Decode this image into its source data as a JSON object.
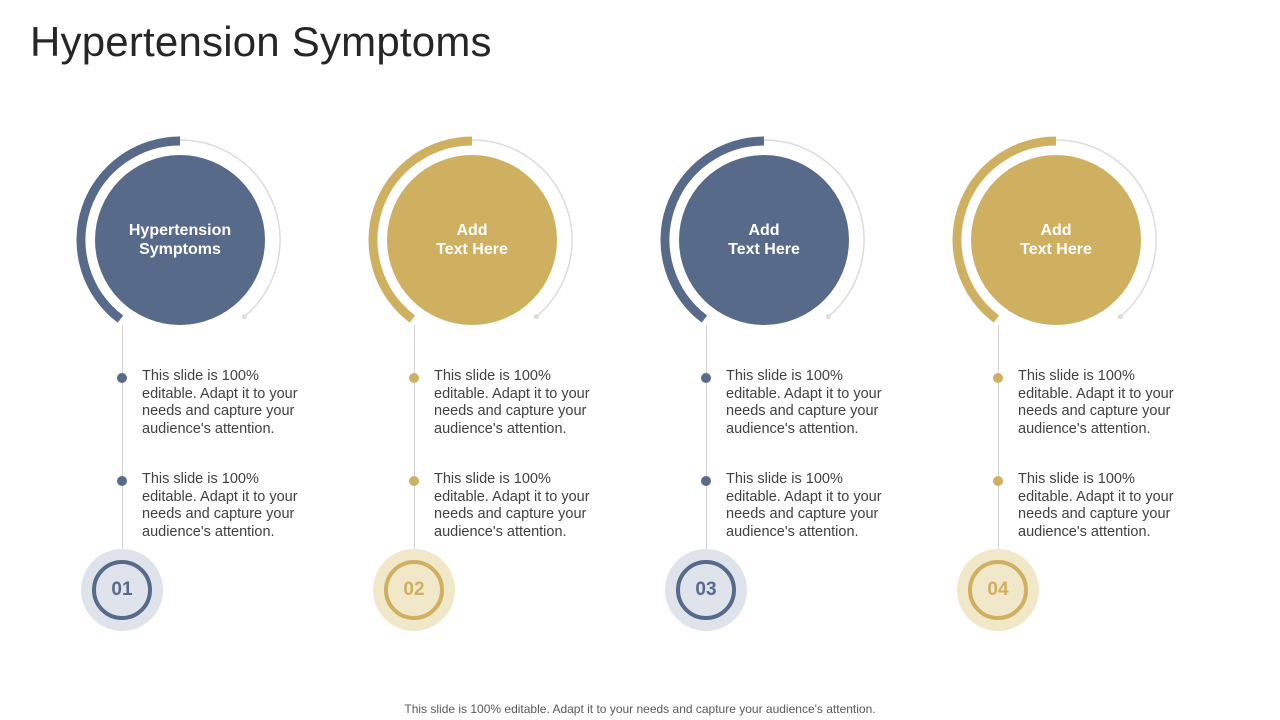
{
  "title": "Hypertension Symptoms",
  "footer": "This slide is 100% editable. Adapt it to your needs and capture your audience's attention.",
  "colors": {
    "blue": "#586a8a",
    "blue_light": "#dfe3eb",
    "gold": "#cfb061",
    "gold_light": "#f1e7c9",
    "ring_grey": "#dcdcdc",
    "line_grey": "#d4d4d4"
  },
  "columns": [
    {
      "theme": "blue",
      "circle_lines": [
        "Hypertension",
        "Symptoms"
      ],
      "bullets": [
        "This slide is 100% editable. Adapt it to your needs and capture your audience's attention.",
        "This slide is 100% editable. Adapt it to your needs and capture your audience's attention."
      ],
      "number": "01"
    },
    {
      "theme": "gold",
      "circle_lines": [
        "Add",
        "Text Here"
      ],
      "bullets": [
        "This slide is 100% editable. Adapt it to your needs and capture your audience's attention.",
        "This slide is 100% editable. Adapt it to your needs and capture your audience's attention."
      ],
      "number": "02"
    },
    {
      "theme": "blue",
      "circle_lines": [
        "Add",
        "Text Here"
      ],
      "bullets": [
        "This slide is 100% editable. Adapt it to your needs and capture your audience's attention.",
        "This slide is 100% editable. Adapt it to your needs and capture your audience's attention."
      ],
      "number": "03"
    },
    {
      "theme": "gold",
      "circle_lines": [
        "Add",
        "Text Here"
      ],
      "bullets": [
        "This slide is 100% editable. Adapt it to your needs and capture your audience's attention.",
        "This slide is 100% editable. Adapt it to your needs and capture your audience's attention."
      ],
      "number": "04"
    }
  ]
}
